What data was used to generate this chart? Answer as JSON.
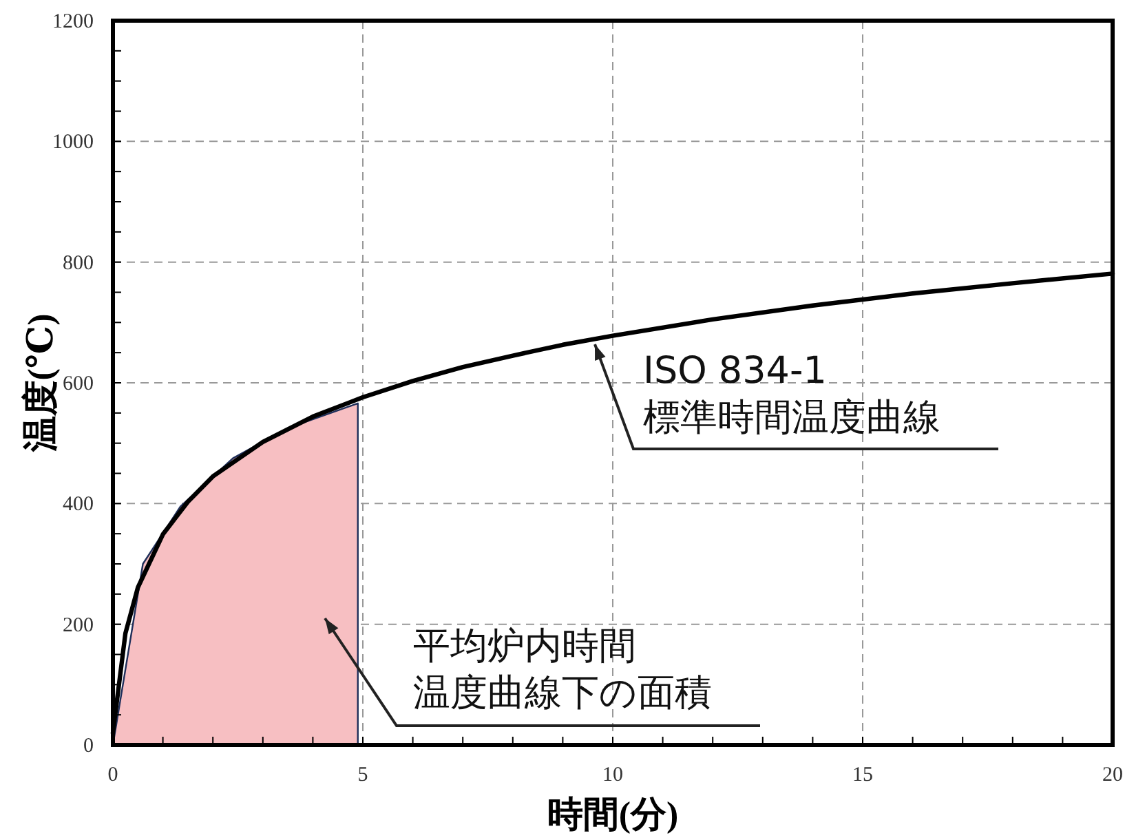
{
  "chart_data": {
    "type": "line",
    "xlabel": "時間(分)",
    "ylabel": "温度(℃)",
    "xlim": [
      0,
      20
    ],
    "ylim": [
      0,
      1200
    ],
    "xticks": [
      0,
      5,
      10,
      15,
      20
    ],
    "yticks": [
      0,
      200,
      400,
      600,
      800,
      1000,
      1200
    ],
    "grid": true,
    "line_style": "solid",
    "series": [
      {
        "type": "area",
        "color": "#f7bfc2",
        "x": [
          0,
          0.6,
          1.35,
          2.4,
          3.5,
          4.9
        ],
        "values": [
          0,
          300,
          395,
          475,
          525,
          566
        ]
      },
      {
        "color": "#000000",
        "x": [
          0,
          0.25,
          0.5,
          1,
          1.5,
          2,
          3,
          4,
          5,
          6,
          7,
          8,
          9,
          10,
          12,
          14,
          16,
          18,
          20
        ],
        "values": [
          20,
          185,
          261,
          349,
          403,
          445,
          502,
          544,
          576,
          603,
          626,
          645,
          663,
          678,
          705,
          728,
          748,
          765,
          781
        ]
      }
    ],
    "annotations": [
      "ISO 834-1",
      "標準時間温度曲線",
      "平均炉内時間",
      "温度曲線下の面積"
    ]
  }
}
